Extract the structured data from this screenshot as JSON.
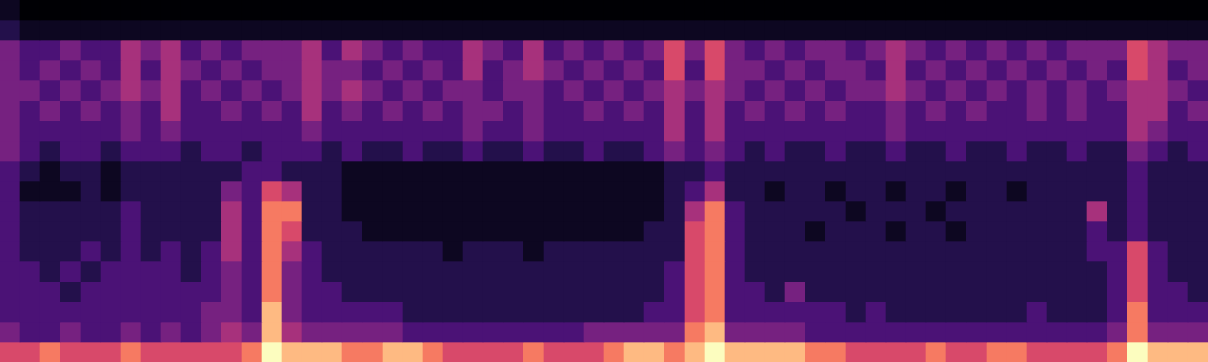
{
  "chart_data": {
    "type": "heatmap",
    "tick_labels": false,
    "cells": [
      [
        1,
        0,
        0,
        0,
        0,
        0,
        0,
        0,
        0,
        0,
        0,
        0,
        0,
        0,
        0,
        0,
        0,
        0,
        0,
        0,
        0,
        0,
        0,
        0,
        0,
        0,
        0,
        0,
        0,
        0,
        0,
        0,
        0,
        0,
        0,
        0,
        0,
        0,
        0,
        0,
        0,
        0,
        0,
        0,
        0,
        0,
        0,
        0,
        0,
        0,
        0,
        0,
        0,
        0,
        0,
        0,
        0,
        0,
        0,
        0
      ],
      [
        2,
        1,
        1,
        1,
        1,
        1,
        1,
        1,
        1,
        1,
        1,
        1,
        1,
        1,
        1,
        1,
        1,
        1,
        1,
        1,
        1,
        1,
        1,
        1,
        1,
        1,
        1,
        1,
        1,
        1,
        1,
        1,
        1,
        1,
        1,
        1,
        1,
        1,
        1,
        1,
        1,
        1,
        1,
        1,
        1,
        1,
        1,
        1,
        1,
        1,
        1,
        1,
        1,
        1,
        1,
        1,
        1,
        1,
        1,
        1
      ],
      [
        4,
        3,
        3,
        4,
        3,
        3,
        5,
        4,
        5,
        3,
        4,
        3,
        4,
        4,
        4,
        5,
        3,
        5,
        4,
        3,
        4,
        3,
        3,
        5,
        4,
        3,
        5,
        3,
        4,
        3,
        4,
        3,
        4,
        6,
        4,
        6,
        4,
        3,
        4,
        3,
        4,
        4,
        3,
        4,
        5,
        4,
        3,
        4,
        3,
        4,
        3,
        4,
        3,
        4,
        4,
        4,
        6,
        5,
        4,
        4
      ],
      [
        4,
        3,
        4,
        3,
        4,
        3,
        5,
        3,
        5,
        4,
        3,
        4,
        3,
        4,
        4,
        5,
        4,
        4,
        3,
        4,
        3,
        4,
        3,
        5,
        3,
        4,
        5,
        4,
        3,
        4,
        3,
        4,
        3,
        6,
        3,
        6,
        4,
        4,
        3,
        4,
        3,
        4,
        4,
        3,
        5,
        3,
        4,
        3,
        4,
        3,
        4,
        3,
        4,
        3,
        4,
        3,
        6,
        5,
        3,
        4
      ],
      [
        4,
        4,
        3,
        4,
        3,
        4,
        5,
        4,
        5,
        3,
        4,
        3,
        4,
        3,
        4,
        5,
        4,
        5,
        4,
        3,
        4,
        3,
        4,
        4,
        3,
        4,
        4,
        3,
        4,
        3,
        4,
        3,
        4,
        5,
        4,
        5,
        4,
        3,
        4,
        3,
        4,
        3,
        4,
        4,
        5,
        4,
        3,
        4,
        3,
        4,
        3,
        4,
        3,
        4,
        3,
        4,
        5,
        5,
        4,
        3
      ],
      [
        4,
        3,
        4,
        3,
        4,
        3,
        4,
        3,
        5,
        3,
        3,
        4,
        3,
        4,
        3,
        5,
        3,
        4,
        3,
        4,
        3,
        4,
        3,
        4,
        4,
        3,
        4,
        3,
        3,
        4,
        3,
        4,
        3,
        5,
        3,
        5,
        3,
        4,
        3,
        4,
        3,
        4,
        3,
        3,
        4,
        3,
        4,
        3,
        4,
        3,
        3,
        4,
        3,
        4,
        3,
        3,
        5,
        5,
        3,
        4
      ],
      [
        4,
        3,
        3,
        3,
        3,
        3,
        4,
        3,
        4,
        3,
        3,
        3,
        3,
        3,
        3,
        4,
        3,
        3,
        3,
        3,
        3,
        3,
        3,
        4,
        3,
        3,
        4,
        3,
        3,
        3,
        3,
        3,
        3,
        5,
        3,
        5,
        3,
        3,
        3,
        3,
        3,
        3,
        3,
        3,
        4,
        3,
        3,
        3,
        3,
        3,
        3,
        3,
        3,
        3,
        3,
        3,
        5,
        4,
        3,
        3
      ],
      [
        4,
        3,
        2,
        3,
        3,
        2,
        3,
        3,
        3,
        2,
        3,
        3,
        2,
        3,
        3,
        3,
        2,
        3,
        2,
        2,
        3,
        2,
        2,
        3,
        2,
        2,
        3,
        2,
        2,
        3,
        2,
        2,
        3,
        4,
        3,
        4,
        3,
        2,
        3,
        2,
        2,
        3,
        2,
        2,
        3,
        2,
        2,
        3,
        2,
        2,
        3,
        2,
        2,
        3,
        2,
        2,
        4,
        3,
        2,
        3
      ],
      [
        3,
        2,
        1,
        2,
        2,
        1,
        2,
        2,
        2,
        2,
        2,
        2,
        3,
        3,
        2,
        2,
        2,
        1,
        1,
        1,
        1,
        1,
        1,
        1,
        1,
        1,
        1,
        1,
        1,
        1,
        1,
        1,
        1,
        2,
        2,
        3,
        2,
        2,
        2,
        2,
        2,
        2,
        2,
        2,
        2,
        2,
        2,
        2,
        2,
        2,
        2,
        2,
        2,
        2,
        2,
        2,
        3,
        2,
        2,
        2
      ],
      [
        3,
        1,
        1,
        1,
        2,
        1,
        2,
        2,
        2,
        2,
        2,
        4,
        3,
        6,
        5,
        2,
        2,
        1,
        1,
        1,
        1,
        1,
        1,
        1,
        1,
        1,
        1,
        1,
        1,
        1,
        1,
        1,
        1,
        2,
        3,
        5,
        2,
        2,
        1,
        2,
        2,
        1,
        2,
        2,
        1,
        2,
        2,
        1,
        2,
        2,
        1,
        2,
        2,
        2,
        2,
        2,
        3,
        2,
        2,
        2
      ],
      [
        3,
        2,
        2,
        2,
        2,
        2,
        3,
        2,
        2,
        2,
        2,
        5,
        3,
        7,
        7,
        2,
        2,
        1,
        1,
        1,
        1,
        1,
        1,
        1,
        1,
        1,
        1,
        1,
        1,
        1,
        1,
        1,
        1,
        2,
        5,
        7,
        3,
        2,
        2,
        2,
        2,
        2,
        1,
        2,
        2,
        2,
        1,
        2,
        2,
        2,
        2,
        2,
        2,
        2,
        5,
        2,
        3,
        2,
        2,
        2
      ],
      [
        3,
        2,
        2,
        2,
        2,
        2,
        3,
        2,
        2,
        2,
        2,
        5,
        3,
        7,
        6,
        2,
        2,
        2,
        1,
        1,
        1,
        1,
        1,
        1,
        1,
        1,
        1,
        1,
        1,
        1,
        1,
        1,
        2,
        2,
        6,
        7,
        3,
        2,
        2,
        2,
        1,
        2,
        2,
        2,
        1,
        2,
        2,
        1,
        2,
        2,
        2,
        2,
        2,
        2,
        3,
        2,
        3,
        2,
        2,
        2
      ],
      [
        3,
        2,
        2,
        2,
        3,
        2,
        3,
        2,
        3,
        2,
        3,
        5,
        3,
        7,
        5,
        3,
        2,
        2,
        2,
        2,
        2,
        2,
        1,
        2,
        2,
        2,
        1,
        2,
        2,
        2,
        2,
        2,
        2,
        2,
        6,
        7,
        3,
        2,
        2,
        2,
        2,
        2,
        2,
        2,
        2,
        2,
        2,
        2,
        2,
        2,
        2,
        2,
        2,
        2,
        3,
        3,
        6,
        3,
        2,
        2
      ],
      [
        3,
        3,
        2,
        3,
        2,
        3,
        3,
        3,
        3,
        2,
        3,
        4,
        3,
        7,
        4,
        3,
        2,
        2,
        2,
        2,
        2,
        2,
        2,
        2,
        2,
        2,
        2,
        2,
        2,
        2,
        2,
        2,
        2,
        3,
        6,
        7,
        3,
        2,
        2,
        2,
        2,
        2,
        2,
        2,
        2,
        2,
        2,
        2,
        2,
        2,
        2,
        2,
        2,
        2,
        2,
        3,
        6,
        3,
        2,
        2
      ],
      [
        3,
        3,
        3,
        2,
        3,
        3,
        3,
        3,
        3,
        3,
        3,
        4,
        3,
        7,
        4,
        3,
        3,
        2,
        2,
        2,
        2,
        2,
        2,
        2,
        2,
        2,
        2,
        2,
        2,
        2,
        2,
        2,
        2,
        3,
        6,
        7,
        3,
        3,
        2,
        4,
        2,
        2,
        2,
        2,
        2,
        2,
        2,
        2,
        2,
        2,
        2,
        2,
        2,
        2,
        2,
        3,
        6,
        3,
        3,
        2
      ],
      [
        3,
        3,
        3,
        3,
        3,
        3,
        3,
        3,
        3,
        3,
        4,
        4,
        3,
        8,
        4,
        3,
        3,
        3,
        3,
        3,
        2,
        2,
        2,
        2,
        2,
        2,
        2,
        2,
        2,
        2,
        2,
        2,
        3,
        3,
        6,
        7,
        3,
        3,
        3,
        3,
        3,
        3,
        2,
        3,
        2,
        2,
        2,
        2,
        2,
        2,
        2,
        3,
        2,
        2,
        2,
        3,
        7,
        3,
        3,
        3
      ],
      [
        4,
        3,
        3,
        4,
        3,
        3,
        4,
        3,
        4,
        3,
        4,
        5,
        4,
        8,
        5,
        4,
        4,
        4,
        4,
        4,
        3,
        3,
        3,
        3,
        3,
        3,
        3,
        3,
        3,
        4,
        4,
        4,
        4,
        4,
        7,
        8,
        4,
        4,
        4,
        4,
        3,
        3,
        3,
        3,
        3,
        3,
        3,
        3,
        3,
        3,
        3,
        3,
        3,
        3,
        3,
        4,
        7,
        4,
        4,
        4
      ],
      [
        6,
        6,
        7,
        6,
        6,
        6,
        7,
        6,
        6,
        6,
        6,
        6,
        7,
        9,
        8,
        8,
        8,
        7,
        7,
        8,
        8,
        7,
        6,
        6,
        6,
        6,
        7,
        6,
        6,
        6,
        7,
        8,
        8,
        7,
        8,
        9,
        8,
        8,
        8,
        8,
        7,
        7,
        6,
        6,
        6,
        6,
        7,
        6,
        6,
        7,
        7,
        6,
        6,
        6,
        6,
        7,
        9,
        8,
        8,
        8
      ]
    ]
  }
}
